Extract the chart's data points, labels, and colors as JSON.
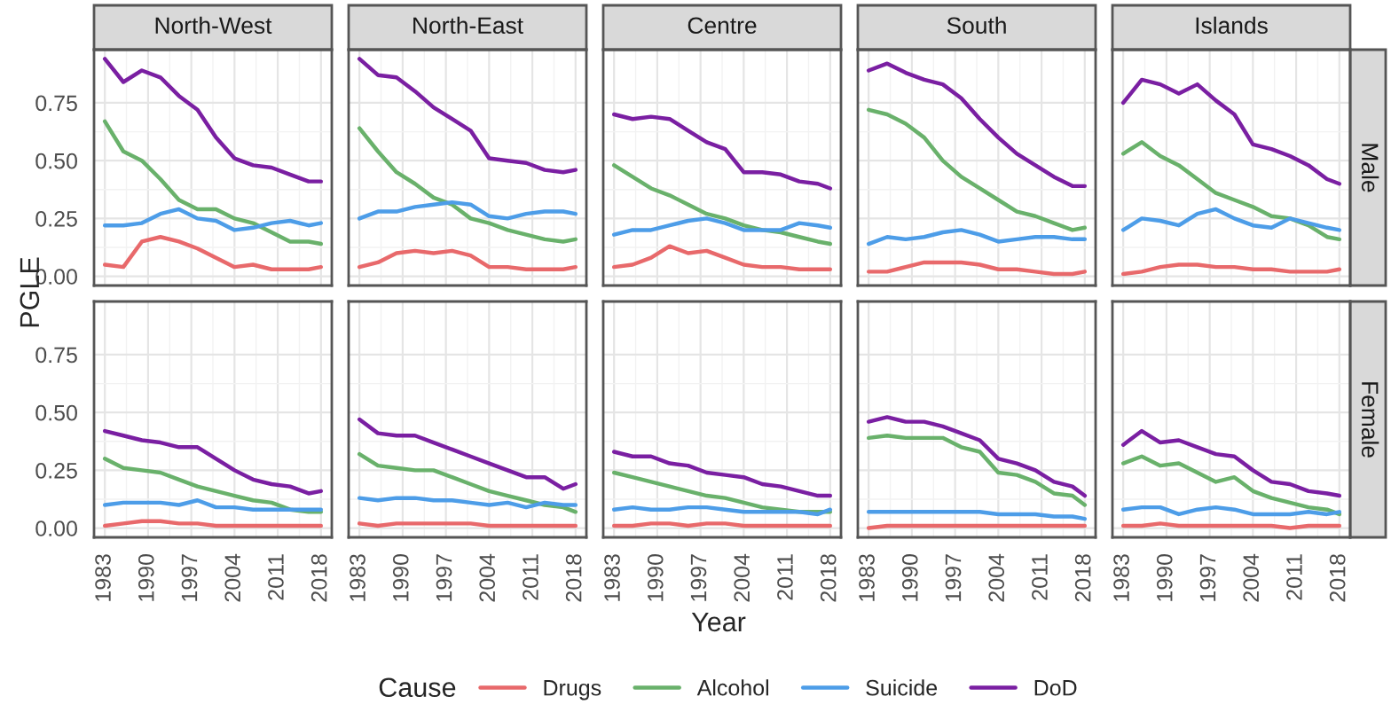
{
  "chart_data": [
    {
      "type": "line",
      "title": "North-West",
      "ylabel": "PGLE",
      "legend": "bottom",
      "legend_title": "Cause",
      "tick_labels": "y",
      "grid": true,
      "xlim": [
        1981.25,
        2019.75
      ],
      "xticks": [
        1983,
        1990,
        1997,
        2004,
        2011,
        2018
      ],
      "ylim": [
        -0.04,
        0.98
      ],
      "yticks": [
        {
          "value": 0,
          "label": "0.00"
        },
        {
          "value": 0.25,
          "label": "0.25"
        },
        {
          "value": 0.5,
          "label": "0.50"
        },
        {
          "value": 0.75,
          "label": "0.75"
        }
      ],
      "x": [
        1983,
        1986,
        1989,
        1992,
        1995,
        1998,
        2001,
        2004,
        2007,
        2010,
        2013,
        2016,
        2018
      ],
      "series": [
        {
          "name": "Drugs",
          "color": "#e8696b",
          "values": [
            0.05,
            0.04,
            0.15,
            0.17,
            0.15,
            0.12,
            0.08,
            0.04,
            0.05,
            0.03,
            0.03,
            0.03,
            0.04
          ]
        },
        {
          "name": "Alcohol",
          "color": "#69b16b",
          "values": [
            0.67,
            0.54,
            0.5,
            0.42,
            0.33,
            0.29,
            0.29,
            0.25,
            0.23,
            0.19,
            0.15,
            0.15,
            0.14
          ]
        },
        {
          "name": "Suicide",
          "color": "#4d9de8",
          "values": [
            0.22,
            0.22,
            0.23,
            0.27,
            0.29,
            0.25,
            0.24,
            0.2,
            0.21,
            0.23,
            0.24,
            0.22,
            0.23
          ]
        },
        {
          "name": "DoD",
          "color": "#7a1fa2",
          "values": [
            0.94,
            0.84,
            0.89,
            0.86,
            0.78,
            0.72,
            0.6,
            0.51,
            0.48,
            0.47,
            0.44,
            0.41,
            0.41
          ]
        }
      ]
    },
    {
      "type": "line",
      "title": "North-East",
      "tick_labels": false,
      "grid": true,
      "xlim": [
        1981.25,
        2019.75
      ],
      "xticks": [
        1983,
        1990,
        1997,
        2004,
        2011,
        2018
      ],
      "ylim": [
        -0.04,
        0.98
      ],
      "yticks": [
        0,
        0.25,
        0.5,
        0.75
      ],
      "x": [
        1983,
        1986,
        1989,
        1992,
        1995,
        1998,
        2001,
        2004,
        2007,
        2010,
        2013,
        2016,
        2018
      ],
      "series": [
        {
          "color": "#e8696b",
          "values": [
            0.04,
            0.06,
            0.1,
            0.11,
            0.1,
            0.11,
            0.09,
            0.04,
            0.04,
            0.03,
            0.03,
            0.03,
            0.04
          ]
        },
        {
          "color": "#69b16b",
          "values": [
            0.64,
            0.54,
            0.45,
            0.4,
            0.34,
            0.31,
            0.25,
            0.23,
            0.2,
            0.18,
            0.16,
            0.15,
            0.16
          ]
        },
        {
          "color": "#4d9de8",
          "values": [
            0.25,
            0.28,
            0.28,
            0.3,
            0.31,
            0.32,
            0.31,
            0.26,
            0.25,
            0.27,
            0.28,
            0.28,
            0.27
          ]
        },
        {
          "color": "#7a1fa2",
          "values": [
            0.94,
            0.87,
            0.86,
            0.8,
            0.73,
            0.68,
            0.63,
            0.51,
            0.5,
            0.49,
            0.46,
            0.45,
            0.46
          ]
        }
      ]
    },
    {
      "type": "line",
      "title": "Centre",
      "tick_labels": false,
      "grid": true,
      "xlim": [
        1981.25,
        2019.75
      ],
      "xticks": [
        1983,
        1990,
        1997,
        2004,
        2011,
        2018
      ],
      "ylim": [
        -0.04,
        0.98
      ],
      "yticks": [
        0,
        0.25,
        0.5,
        0.75
      ],
      "x": [
        1983,
        1986,
        1989,
        1992,
        1995,
        1998,
        2001,
        2004,
        2007,
        2010,
        2013,
        2016,
        2018
      ],
      "series": [
        {
          "color": "#e8696b",
          "values": [
            0.04,
            0.05,
            0.08,
            0.13,
            0.1,
            0.11,
            0.08,
            0.05,
            0.04,
            0.04,
            0.03,
            0.03,
            0.03
          ]
        },
        {
          "color": "#69b16b",
          "values": [
            0.48,
            0.43,
            0.38,
            0.35,
            0.31,
            0.27,
            0.25,
            0.22,
            0.2,
            0.19,
            0.17,
            0.15,
            0.14
          ]
        },
        {
          "color": "#4d9de8",
          "values": [
            0.18,
            0.2,
            0.2,
            0.22,
            0.24,
            0.25,
            0.23,
            0.2,
            0.2,
            0.2,
            0.23,
            0.22,
            0.21
          ]
        },
        {
          "color": "#7a1fa2",
          "values": [
            0.7,
            0.68,
            0.69,
            0.68,
            0.63,
            0.58,
            0.55,
            0.45,
            0.45,
            0.44,
            0.41,
            0.4,
            0.38
          ]
        }
      ]
    },
    {
      "type": "line",
      "title": "South",
      "tick_labels": false,
      "grid": true,
      "xlim": [
        1981.25,
        2019.75
      ],
      "xticks": [
        1983,
        1990,
        1997,
        2004,
        2011,
        2018
      ],
      "ylim": [
        -0.04,
        0.98
      ],
      "yticks": [
        0,
        0.25,
        0.5,
        0.75
      ],
      "x": [
        1983,
        1986,
        1989,
        1992,
        1995,
        1998,
        2001,
        2004,
        2007,
        2010,
        2013,
        2016,
        2018
      ],
      "series": [
        {
          "color": "#e8696b",
          "values": [
            0.02,
            0.02,
            0.04,
            0.06,
            0.06,
            0.06,
            0.05,
            0.03,
            0.03,
            0.02,
            0.01,
            0.01,
            0.02
          ]
        },
        {
          "color": "#69b16b",
          "values": [
            0.72,
            0.7,
            0.66,
            0.6,
            0.5,
            0.43,
            0.38,
            0.33,
            0.28,
            0.26,
            0.23,
            0.2,
            0.21
          ]
        },
        {
          "color": "#4d9de8",
          "values": [
            0.14,
            0.17,
            0.16,
            0.17,
            0.19,
            0.2,
            0.18,
            0.15,
            0.16,
            0.17,
            0.17,
            0.16,
            0.16
          ]
        },
        {
          "color": "#7a1fa2",
          "values": [
            0.89,
            0.92,
            0.88,
            0.85,
            0.83,
            0.77,
            0.68,
            0.6,
            0.53,
            0.48,
            0.43,
            0.39,
            0.39
          ]
        }
      ]
    },
    {
      "type": "line",
      "title": "Islands",
      "annotations": [
        "Male"
      ],
      "tick_labels": false,
      "grid": true,
      "xlim": [
        1981.25,
        2019.75
      ],
      "xticks": [
        1983,
        1990,
        1997,
        2004,
        2011,
        2018
      ],
      "ylim": [
        -0.04,
        0.98
      ],
      "yticks": [
        0,
        0.25,
        0.5,
        0.75
      ],
      "x": [
        1983,
        1986,
        1989,
        1992,
        1995,
        1998,
        2001,
        2004,
        2007,
        2010,
        2013,
        2016,
        2018
      ],
      "series": [
        {
          "color": "#e8696b",
          "values": [
            0.01,
            0.02,
            0.04,
            0.05,
            0.05,
            0.04,
            0.04,
            0.03,
            0.03,
            0.02,
            0.02,
            0.02,
            0.03
          ]
        },
        {
          "color": "#69b16b",
          "values": [
            0.53,
            0.58,
            0.52,
            0.48,
            0.42,
            0.36,
            0.33,
            0.3,
            0.26,
            0.25,
            0.22,
            0.17,
            0.16
          ]
        },
        {
          "color": "#4d9de8",
          "values": [
            0.2,
            0.25,
            0.24,
            0.22,
            0.27,
            0.29,
            0.25,
            0.22,
            0.21,
            0.25,
            0.23,
            0.21,
            0.2
          ]
        },
        {
          "color": "#7a1fa2",
          "values": [
            0.75,
            0.85,
            0.83,
            0.79,
            0.83,
            0.76,
            0.7,
            0.57,
            0.55,
            0.52,
            0.48,
            0.42,
            0.4
          ]
        }
      ]
    },
    {
      "type": "line",
      "grid": true,
      "xlim": [
        1981.25,
        2019.75
      ],
      "xticks": [
        1983,
        1990,
        1997,
        2004,
        2011,
        2018
      ],
      "ylim": [
        -0.04,
        0.98
      ],
      "yticks": [
        {
          "value": 0,
          "label": "0.00"
        },
        {
          "value": 0.25,
          "label": "0.25"
        },
        {
          "value": 0.5,
          "label": "0.50"
        },
        {
          "value": 0.75,
          "label": "0.75"
        }
      ],
      "x": [
        1983,
        1986,
        1989,
        1992,
        1995,
        1998,
        2001,
        2004,
        2007,
        2010,
        2013,
        2016,
        2018
      ],
      "series": [
        {
          "color": "#e8696b",
          "values": [
            0.01,
            0.02,
            0.03,
            0.03,
            0.02,
            0.02,
            0.01,
            0.01,
            0.01,
            0.01,
            0.01,
            0.01,
            0.01
          ]
        },
        {
          "color": "#69b16b",
          "values": [
            0.3,
            0.26,
            0.25,
            0.24,
            0.21,
            0.18,
            0.16,
            0.14,
            0.12,
            0.11,
            0.08,
            0.07,
            0.07
          ]
        },
        {
          "color": "#4d9de8",
          "values": [
            0.1,
            0.11,
            0.11,
            0.11,
            0.1,
            0.12,
            0.09,
            0.09,
            0.08,
            0.08,
            0.08,
            0.08,
            0.08
          ]
        },
        {
          "color": "#7a1fa2",
          "values": [
            0.42,
            0.4,
            0.38,
            0.37,
            0.35,
            0.35,
            0.3,
            0.25,
            0.21,
            0.19,
            0.18,
            0.15,
            0.16
          ]
        }
      ]
    },
    {
      "type": "line",
      "tick_labels": "x",
      "grid": true,
      "xlim": [
        1981.25,
        2019.75
      ],
      "xticks": [
        1983,
        1990,
        1997,
        2004,
        2011,
        2018
      ],
      "ylim": [
        -0.04,
        0.98
      ],
      "yticks": [
        0,
        0.25,
        0.5,
        0.75
      ],
      "x": [
        1983,
        1986,
        1989,
        1992,
        1995,
        1998,
        2001,
        2004,
        2007,
        2010,
        2013,
        2016,
        2018
      ],
      "series": [
        {
          "color": "#e8696b",
          "values": [
            0.02,
            0.01,
            0.02,
            0.02,
            0.02,
            0.02,
            0.02,
            0.01,
            0.01,
            0.01,
            0.01,
            0.01,
            0.01
          ]
        },
        {
          "color": "#69b16b",
          "values": [
            0.32,
            0.27,
            0.26,
            0.25,
            0.25,
            0.22,
            0.19,
            0.16,
            0.14,
            0.12,
            0.1,
            0.09,
            0.07
          ]
        },
        {
          "color": "#4d9de8",
          "values": [
            0.13,
            0.12,
            0.13,
            0.13,
            0.12,
            0.12,
            0.11,
            0.1,
            0.11,
            0.09,
            0.11,
            0.1,
            0.1
          ]
        },
        {
          "color": "#7a1fa2",
          "values": [
            0.47,
            0.41,
            0.4,
            0.4,
            0.37,
            0.34,
            0.31,
            0.28,
            0.25,
            0.22,
            0.22,
            0.17,
            0.19
          ]
        }
      ]
    },
    {
      "type": "line",
      "xlabel": "Year",
      "tick_labels": "x",
      "grid": true,
      "xlim": [
        1981.25,
        2019.75
      ],
      "xticks": [
        1983,
        1990,
        1997,
        2004,
        2011,
        2018
      ],
      "ylim": [
        -0.04,
        0.98
      ],
      "yticks": [
        0,
        0.25,
        0.5,
        0.75
      ],
      "x": [
        1983,
        1986,
        1989,
        1992,
        1995,
        1998,
        2001,
        2004,
        2007,
        2010,
        2013,
        2016,
        2018
      ],
      "series": [
        {
          "color": "#e8696b",
          "values": [
            0.01,
            0.01,
            0.02,
            0.02,
            0.01,
            0.02,
            0.02,
            0.01,
            0.01,
            0.01,
            0.01,
            0.01,
            0.01
          ]
        },
        {
          "color": "#69b16b",
          "values": [
            0.24,
            0.22,
            0.2,
            0.18,
            0.16,
            0.14,
            0.13,
            0.11,
            0.09,
            0.08,
            0.07,
            0.07,
            0.07
          ]
        },
        {
          "color": "#4d9de8",
          "values": [
            0.08,
            0.09,
            0.08,
            0.08,
            0.09,
            0.09,
            0.08,
            0.07,
            0.07,
            0.07,
            0.07,
            0.06,
            0.08
          ]
        },
        {
          "color": "#7a1fa2",
          "values": [
            0.33,
            0.31,
            0.31,
            0.28,
            0.27,
            0.24,
            0.23,
            0.22,
            0.19,
            0.18,
            0.16,
            0.14,
            0.14
          ]
        }
      ]
    },
    {
      "type": "line",
      "tick_labels": "x",
      "grid": true,
      "xlim": [
        1981.25,
        2019.75
      ],
      "xticks": [
        1983,
        1990,
        1997,
        2004,
        2011,
        2018
      ],
      "ylim": [
        -0.04,
        0.98
      ],
      "yticks": [
        0,
        0.25,
        0.5,
        0.75
      ],
      "x": [
        1983,
        1986,
        1989,
        1992,
        1995,
        1998,
        2001,
        2004,
        2007,
        2010,
        2013,
        2016,
        2018
      ],
      "series": [
        {
          "color": "#e8696b",
          "values": [
            0.0,
            0.01,
            0.01,
            0.01,
            0.01,
            0.01,
            0.01,
            0.01,
            0.01,
            0.01,
            0.01,
            0.01,
            0.01
          ]
        },
        {
          "color": "#69b16b",
          "values": [
            0.39,
            0.4,
            0.39,
            0.39,
            0.39,
            0.35,
            0.33,
            0.24,
            0.23,
            0.2,
            0.15,
            0.14,
            0.1
          ]
        },
        {
          "color": "#4d9de8",
          "values": [
            0.07,
            0.07,
            0.07,
            0.07,
            0.07,
            0.07,
            0.07,
            0.06,
            0.06,
            0.06,
            0.05,
            0.05,
            0.04
          ]
        },
        {
          "color": "#7a1fa2",
          "values": [
            0.46,
            0.48,
            0.46,
            0.46,
            0.44,
            0.41,
            0.38,
            0.3,
            0.28,
            0.25,
            0.2,
            0.18,
            0.14
          ]
        }
      ]
    },
    {
      "type": "line",
      "annotations": [
        "Female"
      ],
      "tick_labels": "x",
      "grid": true,
      "xlim": [
        1981.25,
        2019.75
      ],
      "xticks": [
        1983,
        1990,
        1997,
        2004,
        2011,
        2018
      ],
      "ylim": [
        -0.04,
        0.98
      ],
      "yticks": [
        0,
        0.25,
        0.5,
        0.75
      ],
      "x": [
        1983,
        1986,
        1989,
        1992,
        1995,
        1998,
        2001,
        2004,
        2007,
        2010,
        2013,
        2016,
        2018
      ],
      "series": [
        {
          "color": "#e8696b",
          "values": [
            0.01,
            0.01,
            0.02,
            0.01,
            0.01,
            0.01,
            0.01,
            0.01,
            0.01,
            0.0,
            0.01,
            0.01,
            0.01
          ]
        },
        {
          "color": "#69b16b",
          "values": [
            0.28,
            0.31,
            0.27,
            0.28,
            0.24,
            0.2,
            0.22,
            0.16,
            0.13,
            0.11,
            0.09,
            0.08,
            0.06
          ]
        },
        {
          "color": "#4d9de8",
          "values": [
            0.08,
            0.09,
            0.09,
            0.06,
            0.08,
            0.09,
            0.08,
            0.06,
            0.06,
            0.06,
            0.07,
            0.06,
            0.07
          ]
        },
        {
          "color": "#7a1fa2",
          "values": [
            0.36,
            0.42,
            0.37,
            0.38,
            0.35,
            0.32,
            0.31,
            0.25,
            0.2,
            0.19,
            0.16,
            0.15,
            0.14
          ]
        }
      ]
    }
  ]
}
